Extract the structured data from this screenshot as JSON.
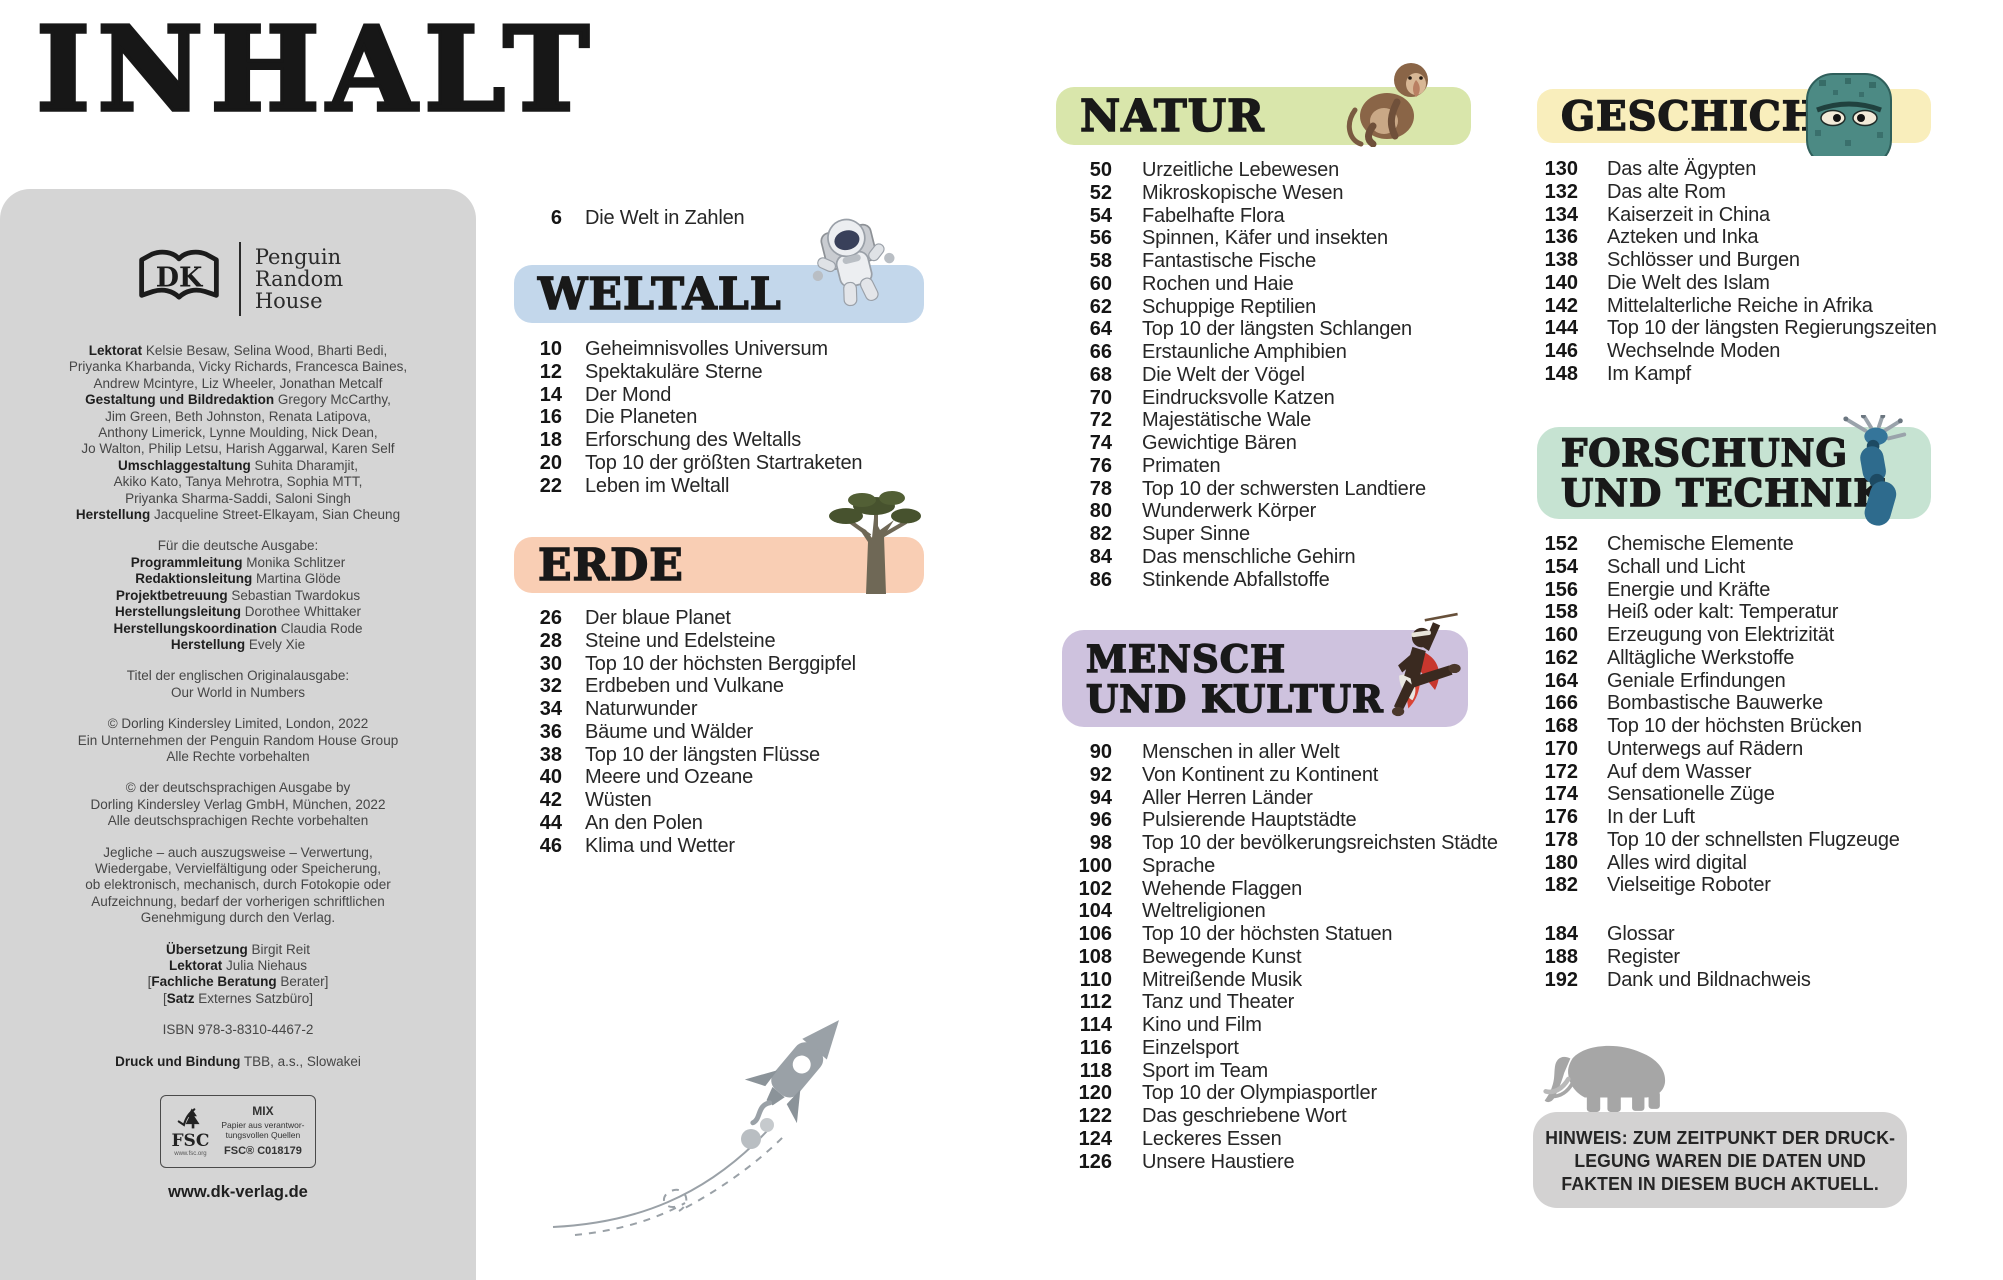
{
  "title": "INHALT",
  "colors": {
    "weltall": "#c3d7eb",
    "erde": "#f9ceb4",
    "natur": "#d9e6ab",
    "mensch": "#cec2de",
    "geschichte": "#f9eebc",
    "forschung": "#c6e3d2",
    "sidebar": "#d5d5d5",
    "note_box": "#d3d2d2",
    "text": "#1c1c1c"
  },
  "sidebar": {
    "logo": {
      "monogram": "DK",
      "publisher": [
        "Penguin",
        "Random",
        "House"
      ]
    },
    "paragraphs": [
      [
        [
          {
            "b": 1,
            "t": "Lektorat"
          },
          {
            "t": " Kelsie Besaw, Selina Wood, Bharti Bedi,"
          }
        ],
        [
          {
            "t": "Priyanka Kharbanda, Vicky Richards, Francesca Baines,"
          }
        ],
        [
          {
            "t": "Andrew Mcintyre, Liz Wheeler, Jonathan Metcalf"
          }
        ],
        [
          {
            "b": 1,
            "t": "Gestaltung und Bildredaktion"
          },
          {
            "t": " Gregory McCarthy,"
          }
        ],
        [
          {
            "t": "Jim Green, Beth Johnston, Renata Latipova,"
          }
        ],
        [
          {
            "t": "Anthony Limerick, Lynne Moulding, Nick Dean,"
          }
        ],
        [
          {
            "t": "Jo Walton, Philip Letsu, Harish Aggarwal, Karen Self"
          }
        ],
        [
          {
            "b": 1,
            "t": "Umschlaggestaltung"
          },
          {
            "t": " Suhita Dharamjit,"
          }
        ],
        [
          {
            "t": "Akiko Kato, Tanya Mehrotra, Sophia MTT,"
          }
        ],
        [
          {
            "t": "Priyanka Sharma-Saddi, Saloni Singh"
          }
        ],
        [
          {
            "b": 1,
            "t": "Herstellung"
          },
          {
            "t": " Jacqueline Street-Elkayam, Sian Cheung"
          }
        ]
      ],
      [
        [
          {
            "t": "Für die deutsche Ausgabe:"
          }
        ],
        [
          {
            "b": 1,
            "t": "Programmleitung"
          },
          {
            "t": " Monika Schlitzer"
          }
        ],
        [
          {
            "b": 1,
            "t": "Redaktionsleitung"
          },
          {
            "t": " Martina Glöde"
          }
        ],
        [
          {
            "b": 1,
            "t": "Projektbetreuung"
          },
          {
            "t": " Sebastian Twardokus"
          }
        ],
        [
          {
            "b": 1,
            "t": "Herstellungsleitung"
          },
          {
            "t": " Dorothee Whittaker"
          }
        ],
        [
          {
            "b": 1,
            "t": "Herstellungskoordination"
          },
          {
            "t": " Claudia Rode"
          }
        ],
        [
          {
            "b": 1,
            "t": "Herstellung"
          },
          {
            "t": " Evely Xie"
          }
        ]
      ],
      [
        [
          {
            "t": "Titel der englischen Originalausgabe:"
          }
        ],
        [
          {
            "t": "Our World in Numbers"
          }
        ]
      ],
      [
        [
          {
            "t": "© Dorling Kindersley Limited, London, 2022"
          }
        ],
        [
          {
            "t": "Ein Unternehmen der Penguin Random House Group"
          }
        ],
        [
          {
            "t": "Alle Rechte vorbehalten"
          }
        ]
      ],
      [
        [
          {
            "t": "© der deutschsprachigen Ausgabe by"
          }
        ],
        [
          {
            "t": "Dorling Kindersley Verlag GmbH, München, 2022"
          }
        ],
        [
          {
            "t": "Alle deutschsprachigen Rechte vorbehalten"
          }
        ]
      ],
      [
        [
          {
            "t": "Jegliche – auch auszugsweise – Verwertung,"
          }
        ],
        [
          {
            "t": "Wiedergabe, Vervielfältigung oder Speicherung,"
          }
        ],
        [
          {
            "t": "ob elektronisch, mechanisch, durch Fotokopie oder"
          }
        ],
        [
          {
            "t": "Aufzeichnung, bedarf der vorherigen schriftlichen"
          }
        ],
        [
          {
            "t": "Genehmigung durch den Verlag."
          }
        ]
      ],
      [
        [
          {
            "b": 1,
            "t": "Übersetzung"
          },
          {
            "t": " Birgit Reit"
          }
        ],
        [
          {
            "b": 1,
            "t": "Lektorat"
          },
          {
            "t": " Julia Niehaus"
          }
        ],
        [
          {
            "t": "["
          },
          {
            "b": 1,
            "t": "Fachliche Beratung"
          },
          {
            "t": " Berater]"
          }
        ],
        [
          {
            "t": "["
          },
          {
            "b": 1,
            "t": "Satz"
          },
          {
            "t": " Externes Satzbüro]"
          }
        ]
      ],
      [
        [
          {
            "t": "ISBN 978-3-8310-4467-2"
          }
        ]
      ],
      [
        [
          {
            "b": 1,
            "t": "Druck und Bindung"
          },
          {
            "t": " TBB, a.s., Slowakei"
          }
        ]
      ]
    ],
    "fsc": {
      "label": "FSC",
      "url": "www.fsc.org",
      "mix": "MIX",
      "source_line1": "Papier aus verantwor-",
      "source_line2": "tungsvollen Quellen",
      "cert": "FSC® C018179"
    },
    "website": "www.dk-verlag.de"
  },
  "intro": {
    "entries": [
      [
        "6",
        "Die Welt in Zahlen"
      ]
    ]
  },
  "sections": {
    "weltall": {
      "title": "WELTALL",
      "entries": [
        [
          "10",
          "Geheimnisvolles Universum"
        ],
        [
          "12",
          "Spektakuläre Sterne"
        ],
        [
          "14",
          "Der Mond"
        ],
        [
          "16",
          "Die Planeten"
        ],
        [
          "18",
          "Erforschung des Weltalls"
        ],
        [
          "20",
          "Top 10 der größten Startraketen"
        ],
        [
          "22",
          "Leben im Weltall"
        ]
      ]
    },
    "erde": {
      "title": "ERDE",
      "entries": [
        [
          "26",
          "Der blaue Planet"
        ],
        [
          "28",
          "Steine und Edelsteine"
        ],
        [
          "30",
          "Top 10 der höchsten Berggipfel"
        ],
        [
          "32",
          "Erdbeben und Vulkane"
        ],
        [
          "34",
          "Naturwunder"
        ],
        [
          "36",
          "Bäume und Wälder"
        ],
        [
          "38",
          "Top 10 der längsten Flüsse"
        ],
        [
          "40",
          "Meere und Ozeane"
        ],
        [
          "42",
          "Wüsten"
        ],
        [
          "44",
          "An den Polen"
        ],
        [
          "46",
          "Klima und Wetter"
        ]
      ]
    },
    "natur": {
      "title": "NATUR",
      "entries": [
        [
          "50",
          "Urzeitliche Lebewesen"
        ],
        [
          "52",
          "Mikroskopische Wesen"
        ],
        [
          "54",
          "Fabelhafte Flora"
        ],
        [
          "56",
          "Spinnen, Käfer und insekten"
        ],
        [
          "58",
          "Fantastische Fische"
        ],
        [
          "60",
          "Rochen und Haie"
        ],
        [
          "62",
          "Schuppige Reptilien"
        ],
        [
          "64",
          "Top 10 der längsten Schlangen"
        ],
        [
          "66",
          "Erstaunliche Amphibien"
        ],
        [
          "68",
          "Die Welt der Vögel"
        ],
        [
          "70",
          "Eindrucksvolle Katzen"
        ],
        [
          "72",
          "Majestätische Wale"
        ],
        [
          "74",
          "Gewichtige Bären"
        ],
        [
          "76",
          "Primaten"
        ],
        [
          "78",
          "Top 10 der schwersten Landtiere"
        ],
        [
          "80",
          "Wunderwerk Körper"
        ],
        [
          "82",
          "Super Sinne"
        ],
        [
          "84",
          "Das menschliche Gehirn"
        ],
        [
          "86",
          "Stinkende Abfallstoffe"
        ]
      ]
    },
    "mensch": {
      "title_lines": [
        "MENSCH",
        "UND KULTUR"
      ],
      "entries": [
        [
          "90",
          "Menschen in aller Welt"
        ],
        [
          "92",
          "Von Kontinent zu Kontinent"
        ],
        [
          "94",
          "Aller Herren Länder"
        ],
        [
          "96",
          "Pulsierende Hauptstädte"
        ],
        [
          "98",
          "Top 10 der bevölkerungsreichsten Städte"
        ],
        [
          "100",
          "Sprache"
        ],
        [
          "102",
          "Wehende Flaggen"
        ],
        [
          "104",
          "Weltreligionen"
        ],
        [
          "106",
          "Top 10 der höchsten Statuen"
        ],
        [
          "108",
          "Bewegende Kunst"
        ],
        [
          "110",
          "Mitreißende Musik"
        ],
        [
          "112",
          "Tanz und Theater"
        ],
        [
          "114",
          "Kino und Film"
        ],
        [
          "116",
          "Einzelsport"
        ],
        [
          "118",
          "Sport im Team"
        ],
        [
          "120",
          "Top 10 der Olympiasportler"
        ],
        [
          "122",
          "Das geschriebene Wort"
        ],
        [
          "124",
          "Leckeres Essen"
        ],
        [
          "126",
          "Unsere Haustiere"
        ]
      ]
    },
    "geschichte": {
      "title": "GESCHICHTE",
      "entries": [
        [
          "130",
          "Das alte Ägypten"
        ],
        [
          "132",
          "Das alte Rom"
        ],
        [
          "134",
          "Kaiserzeit in China"
        ],
        [
          "136",
          "Azteken und Inka"
        ],
        [
          "138",
          "Schlösser und Burgen"
        ],
        [
          "140",
          "Die Welt des Islam"
        ],
        [
          "142",
          "Mittelalterliche Reiche in Afrika"
        ],
        [
          "144",
          "Top 10 der längsten Regierungszeiten"
        ],
        [
          "146",
          "Wechselnde Moden"
        ],
        [
          "148",
          "Im Kampf"
        ]
      ]
    },
    "forschung": {
      "title_lines": [
        "FORSCHUNG",
        "UND TECHNIK"
      ],
      "entries": [
        [
          "152",
          "Chemische Elemente"
        ],
        [
          "154",
          "Schall und Licht"
        ],
        [
          "156",
          "Energie und Kräfte"
        ],
        [
          "158",
          "Heiß oder kalt: Temperatur"
        ],
        [
          "160",
          "Erzeugung von Elektrizität"
        ],
        [
          "162",
          "Alltägliche Werkstoffe"
        ],
        [
          "164",
          "Geniale Erfindungen"
        ],
        [
          "166",
          "Bombastische Bauwerke"
        ],
        [
          "168",
          "Top 10 der höchsten Brücken"
        ],
        [
          "170",
          "Unterwegs auf Rädern"
        ],
        [
          "172",
          "Auf dem Wasser"
        ],
        [
          "174",
          "Sensationelle Züge"
        ],
        [
          "176",
          "In der Luft"
        ],
        [
          "178",
          "Top 10 der schnellsten Flugzeuge"
        ],
        [
          "180",
          "Alles wird digital"
        ],
        [
          "182",
          "Vielseitige Roboter"
        ]
      ],
      "extras": [
        [
          "184",
          "Glossar"
        ],
        [
          "188",
          "Register"
        ],
        [
          "192",
          "Dank und Bildnachweis"
        ]
      ]
    }
  },
  "note": {
    "lines": [
      "HINWEIS: ZUM ZEITPUNKT DER DRUCK-",
      "LEGUNG WAREN DIE DATEN UND",
      "FAKTEN IN DIESEM BUCH AKTUELL."
    ]
  }
}
